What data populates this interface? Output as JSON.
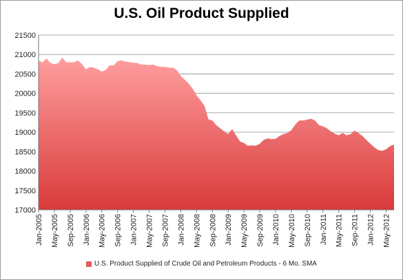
{
  "chart_data": {
    "type": "area",
    "title": "U.S. Oil Product Supplied",
    "xlabel": "",
    "ylabel": "",
    "ylim": [
      17000,
      21500
    ],
    "yticks": [
      "17000",
      "17500",
      "18000",
      "18500",
      "19000",
      "19500",
      "20000",
      "20500",
      "21000",
      "21500"
    ],
    "xticks": [
      "Jan-2005",
      "May-2005",
      "Sep-2005",
      "Jan-2006",
      "May-2006",
      "Sep-2006",
      "Jan-2007",
      "May-2007",
      "Sep-2007",
      "Jan-2008",
      "May-2008",
      "Sep-2008",
      "Jan-2009",
      "May-2009",
      "Sep-2009",
      "Jan-2010",
      "May-2010",
      "Sep-2010",
      "Jan-2011",
      "May-2011",
      "Sep-2011",
      "Jan-2012",
      "May-2012"
    ],
    "grid": true,
    "legend_position": "bottom",
    "colors": {
      "top": "#ff9e9e",
      "bottom": "#d93a3a",
      "legend": "#e35a5a"
    },
    "series": [
      {
        "name": "U.S. Product Supplied of Crude Oil and Petroleum Products - 6 Mo. SMA",
        "values": [
          20840,
          20800,
          20900,
          20780,
          20750,
          20780,
          20920,
          20800,
          20800,
          20800,
          20850,
          20750,
          20620,
          20680,
          20660,
          20620,
          20560,
          20600,
          20720,
          20720,
          20830,
          20850,
          20820,
          20800,
          20790,
          20780,
          20740,
          20740,
          20730,
          20740,
          20700,
          20680,
          20680,
          20660,
          20660,
          20600,
          20450,
          20350,
          20250,
          20120,
          19950,
          19820,
          19680,
          19330,
          19300,
          19180,
          19100,
          19020,
          18950,
          19080,
          18920,
          18760,
          18720,
          18650,
          18660,
          18650,
          18700,
          18800,
          18840,
          18820,
          18830,
          18900,
          18950,
          18980,
          19050,
          19200,
          19300,
          19300,
          19320,
          19350,
          19300,
          19180,
          19150,
          19100,
          19020,
          18960,
          18920,
          18980,
          18920,
          18950,
          19040,
          18980,
          18900,
          18800,
          18700,
          18610,
          18540,
          18520,
          18560,
          18640,
          18680
        ]
      }
    ]
  }
}
